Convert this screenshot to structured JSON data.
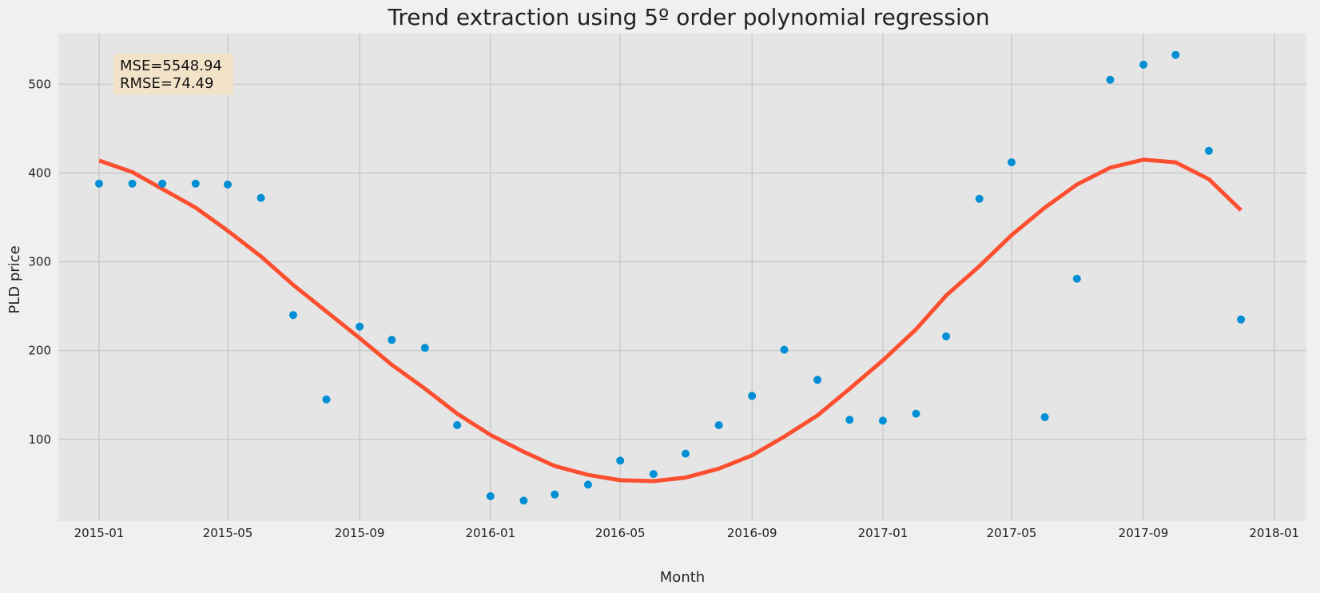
{
  "chart_data": {
    "type": "scatter",
    "title": "Trend extraction using 5º order polynomial regression",
    "xlabel": "Month",
    "ylabel": "PLD price",
    "x_is_date": true,
    "xlim": [
      "2014-11-24",
      "2018-01-31"
    ],
    "ylim": [
      8,
      557
    ],
    "x_ticks": [
      {
        "date": "2015-01-01",
        "label": "2015-01"
      },
      {
        "date": "2015-05-01",
        "label": "2015-05"
      },
      {
        "date": "2015-09-01",
        "label": "2015-09"
      },
      {
        "date": "2016-01-01",
        "label": "2016-01"
      },
      {
        "date": "2016-05-01",
        "label": "2016-05"
      },
      {
        "date": "2016-09-01",
        "label": "2016-09"
      },
      {
        "date": "2017-01-01",
        "label": "2017-01"
      },
      {
        "date": "2017-05-01",
        "label": "2017-05"
      },
      {
        "date": "2017-09-01",
        "label": "2017-09"
      },
      {
        "date": "2018-01-01",
        "label": "2018-01"
      }
    ],
    "y_ticks": [
      {
        "value": 100,
        "label": "100"
      },
      {
        "value": 200,
        "label": "200"
      },
      {
        "value": 300,
        "label": "300"
      },
      {
        "value": 400,
        "label": "400"
      },
      {
        "value": 500,
        "label": "500"
      }
    ],
    "grid": true,
    "annotation": {
      "lines": [
        "MSE=5548.94",
        "RMSE=74.49"
      ],
      "position": "top-left",
      "box_color": "#f2e3c8"
    },
    "colors": {
      "scatter": "#008fd5",
      "trend": "#fc4f30",
      "plot_bg": "#e5e5e5",
      "page_bg": "#f0f0f0",
      "grid": "#cbcbcb"
    },
    "series": [
      {
        "kind": "scatter",
        "x": [
          "2015-01-01",
          "2015-02-01",
          "2015-03-01",
          "2015-04-01",
          "2015-05-01",
          "2015-06-01",
          "2015-07-01",
          "2015-08-01",
          "2015-09-01",
          "2015-10-01",
          "2015-11-01",
          "2015-12-01",
          "2016-01-01",
          "2016-02-01",
          "2016-03-01",
          "2016-04-01",
          "2016-05-01",
          "2016-06-01",
          "2016-07-01",
          "2016-08-01",
          "2016-09-01",
          "2016-10-01",
          "2016-11-01",
          "2016-12-01",
          "2017-01-01",
          "2017-02-01",
          "2017-03-01",
          "2017-04-01",
          "2017-05-01",
          "2017-06-01",
          "2017-07-01",
          "2017-08-01",
          "2017-09-01",
          "2017-10-01",
          "2017-11-01",
          "2017-12-01"
        ],
        "y": [
          388,
          388,
          388,
          388,
          387,
          372,
          240,
          145,
          227,
          212,
          203,
          116,
          36,
          31,
          38,
          49,
          76,
          61,
          84,
          116,
          149,
          201,
          167,
          122,
          121,
          129,
          216,
          371,
          412,
          125,
          281,
          505,
          522,
          533,
          425,
          235
        ]
      },
      {
        "kind": "line",
        "x": [
          "2015-01-01",
          "2015-02-01",
          "2015-03-01",
          "2015-04-01",
          "2015-05-01",
          "2015-06-01",
          "2015-07-01",
          "2015-08-01",
          "2015-09-01",
          "2015-10-01",
          "2015-11-01",
          "2015-12-01",
          "2016-01-01",
          "2016-02-01",
          "2016-03-01",
          "2016-04-01",
          "2016-05-01",
          "2016-06-01",
          "2016-07-01",
          "2016-08-01",
          "2016-09-01",
          "2016-10-01",
          "2016-11-01",
          "2016-12-01",
          "2017-01-01",
          "2017-02-01",
          "2017-03-01",
          "2017-04-01",
          "2017-05-01",
          "2017-06-01",
          "2017-07-01",
          "2017-08-01",
          "2017-09-01",
          "2017-10-01",
          "2017-11-01",
          "2017-12-01"
        ],
        "y": [
          414,
          401,
          382,
          361,
          335,
          306,
          274,
          244,
          214,
          184,
          157,
          129,
          105,
          86,
          70,
          60,
          54,
          53,
          57,
          67,
          82,
          103,
          127,
          157,
          189,
          224,
          262,
          295,
          330,
          361,
          387,
          406,
          415,
          412,
          393,
          358
        ]
      }
    ]
  }
}
